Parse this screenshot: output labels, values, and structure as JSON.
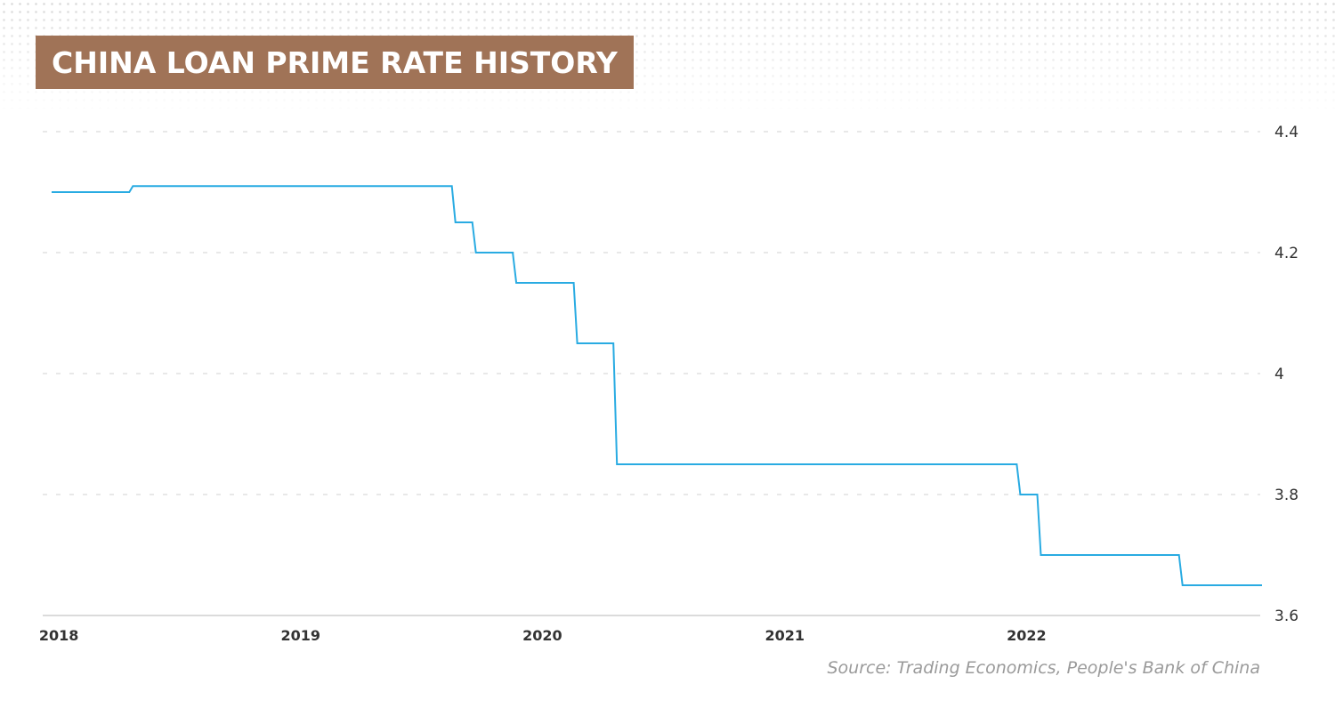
{
  "title": "CHINA LOAN PRIME RATE HISTORY",
  "source": "Source: Trading Economics, People's Bank of China",
  "colors": {
    "title_background": "#a07357",
    "line": "#29abe2",
    "grid": "#d9d9d9"
  },
  "chart_data": {
    "type": "line",
    "step": true,
    "title": "CHINA LOAN PRIME RATE HISTORY",
    "xlabel": "",
    "ylabel": "",
    "ylim": [
      3.6,
      4.4
    ],
    "xlim": [
      "2017-12-21",
      "2022-12-20"
    ],
    "yticks": [
      "3.6",
      "3.8",
      "4",
      "4.2",
      "4.4"
    ],
    "xticks": [
      "2018",
      "2019",
      "2020",
      "2021",
      "2022"
    ],
    "y_axis_position": "right",
    "grid": "horizontal dashed",
    "series": [
      {
        "x": [
          "2017-12-21",
          "2018-04-20",
          "2019-08-20",
          "2019-09-20",
          "2019-11-20",
          "2020-02-20",
          "2020-04-20",
          "2021-12-20",
          "2022-01-20",
          "2022-08-22",
          "2022-12-20"
        ],
        "values": [
          4.3,
          4.31,
          4.25,
          4.2,
          4.15,
          4.05,
          3.85,
          3.8,
          3.7,
          3.65,
          3.65
        ]
      }
    ]
  }
}
